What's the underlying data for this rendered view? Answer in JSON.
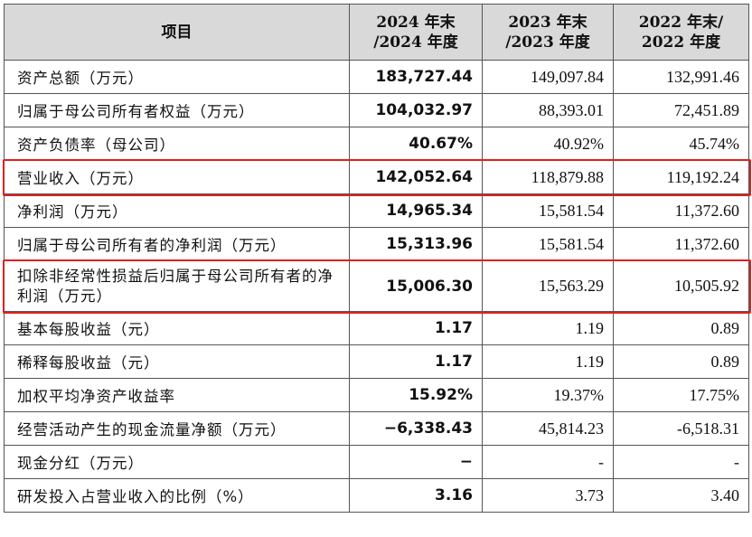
{
  "table": {
    "headers": [
      "项目",
      "2024年末/2024年度",
      "2023年末/2023年度",
      "2022年末/2022年度"
    ],
    "header_lines": [
      [
        "项目"
      ],
      [
        "2024 年末",
        "/2024 年度"
      ],
      [
        "2023 年末",
        "/2023 年度"
      ],
      [
        "2022 年末/",
        "2022 年度"
      ]
    ],
    "rows": [
      {
        "label": "资产总额（万元）",
        "v2024": "183,727.44",
        "v2023": "149,097.84",
        "v2022": "132,991.46"
      },
      {
        "label": "归属于母公司所有者权益（万元）",
        "v2024": "104,032.97",
        "v2023": "88,393.01",
        "v2022": "72,451.89"
      },
      {
        "label": "资产负债率（母公司）",
        "v2024": "40.67%",
        "v2023": "40.92%",
        "v2022": "45.74%"
      },
      {
        "label": "营业收入（万元）",
        "v2024": "142,052.64",
        "v2023": "118,879.88",
        "v2022": "119,192.24"
      },
      {
        "label": "净利润（万元）",
        "v2024": "14,965.34",
        "v2023": "15,581.54",
        "v2022": "11,372.60"
      },
      {
        "label": "归属于母公司所有者的净利润（万元）",
        "v2024": "15,313.96",
        "v2023": "15,581.54",
        "v2022": "11,372.60"
      },
      {
        "label": "扣除非经常性损益后归属于母公司所有者的净利润（万元）",
        "v2024": "15,006.30",
        "v2023": "15,563.29",
        "v2022": "10,505.92"
      },
      {
        "label": "基本每股收益（元）",
        "v2024": "1.17",
        "v2023": "1.19",
        "v2022": "0.89"
      },
      {
        "label": "稀释每股收益（元）",
        "v2024": "1.17",
        "v2023": "1.19",
        "v2022": "0.89"
      },
      {
        "label": "加权平均净资产收益率",
        "v2024": "15.92%",
        "v2023": "19.37%",
        "v2022": "17.75%"
      },
      {
        "label": "经营活动产生的现金流量净额（万元）",
        "v2024": "−6,338.43",
        "v2023": "45,814.23",
        "v2022": "-6,518.31"
      },
      {
        "label": "现金分红（万元）",
        "v2024": "−",
        "v2023": "-",
        "v2022": "-"
      },
      {
        "label": "研发投入占营业收入的比例（%）",
        "v2024": "3.16",
        "v2023": "3.73",
        "v2022": "3.40"
      }
    ]
  },
  "highlight_color": "#e02020"
}
